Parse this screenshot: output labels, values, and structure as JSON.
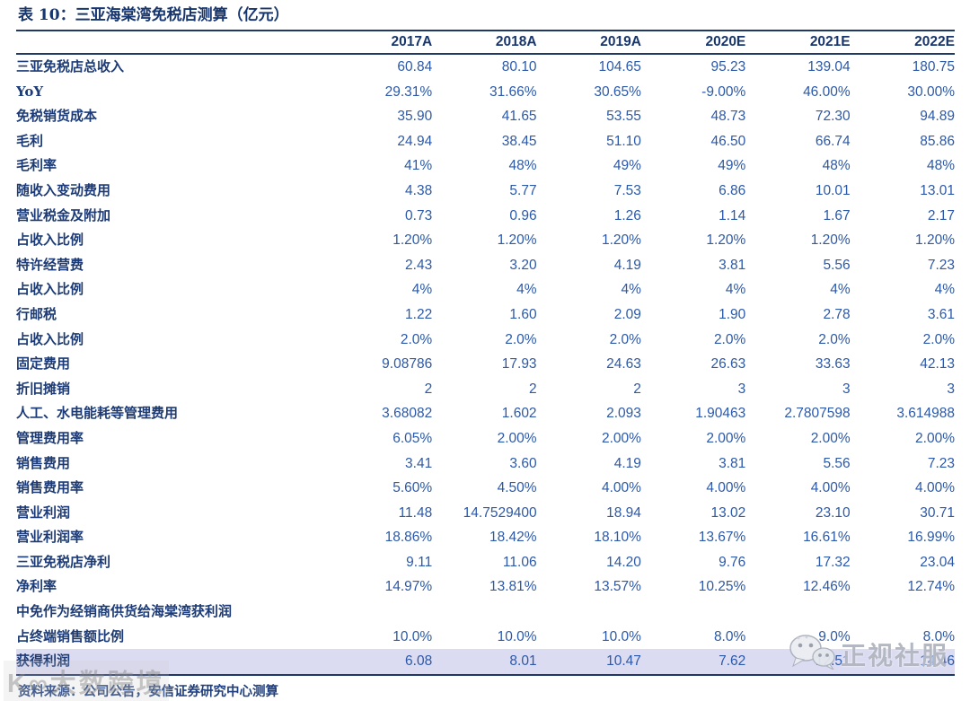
{
  "chart_data": {
    "type": "table",
    "title": "表 10：三亚海棠湾免税店测算（亿元）",
    "columns": [
      "2017A",
      "2018A",
      "2019A",
      "2020E",
      "2021E",
      "2022E"
    ],
    "rows": [
      {
        "label": "三亚免税店总收入",
        "values": [
          "60.84",
          "80.10",
          "104.65",
          "95.23",
          "139.04",
          "180.75"
        ],
        "highlight": false
      },
      {
        "label": "YoY",
        "values": [
          "29.31%",
          "31.66%",
          "30.65%",
          "-9.00%",
          "46.00%",
          "30.00%"
        ],
        "highlight": false
      },
      {
        "label": "免税销货成本",
        "values": [
          "35.90",
          "41.65",
          "53.55",
          "48.73",
          "72.30",
          "94.89"
        ],
        "highlight": false
      },
      {
        "label": "毛利",
        "values": [
          "24.94",
          "38.45",
          "51.10",
          "46.50",
          "66.74",
          "85.86"
        ],
        "highlight": false
      },
      {
        "label": "毛利率",
        "values": [
          "41%",
          "48%",
          "49%",
          "49%",
          "48%",
          "48%"
        ],
        "highlight": false
      },
      {
        "label": "随收入变动费用",
        "values": [
          "4.38",
          "5.77",
          "7.53",
          "6.86",
          "10.01",
          "13.01"
        ],
        "highlight": false
      },
      {
        "label": "营业税金及附加",
        "values": [
          "0.73",
          "0.96",
          "1.26",
          "1.14",
          "1.67",
          "2.17"
        ],
        "highlight": false
      },
      {
        "label": "占收入比例",
        "values": [
          "1.20%",
          "1.20%",
          "1.20%",
          "1.20%",
          "1.20%",
          "1.20%"
        ],
        "highlight": false
      },
      {
        "label": "特许经营费",
        "values": [
          "2.43",
          "3.20",
          "4.19",
          "3.81",
          "5.56",
          "7.23"
        ],
        "highlight": false
      },
      {
        "label": "占收入比例",
        "values": [
          "4%",
          "4%",
          "4%",
          "4%",
          "4%",
          "4%"
        ],
        "highlight": false
      },
      {
        "label": "行邮税",
        "values": [
          "1.22",
          "1.60",
          "2.09",
          "1.90",
          "2.78",
          "3.61"
        ],
        "highlight": false
      },
      {
        "label": "占收入比例",
        "values": [
          "2.0%",
          "2.0%",
          "2.0%",
          "2.0%",
          "2.0%",
          "2.0%"
        ],
        "highlight": false
      },
      {
        "label": "固定费用",
        "values": [
          "9.08786",
          "17.93",
          "24.63",
          "26.63",
          "33.63",
          "42.13"
        ],
        "highlight": false
      },
      {
        "label": "折旧摊销",
        "values": [
          "2",
          "2",
          "2",
          "3",
          "3",
          "3"
        ],
        "highlight": false
      },
      {
        "label": "人工、水电能耗等管理费用",
        "values": [
          "3.68082",
          "1.602",
          "2.093",
          "1.90463",
          "2.7807598",
          "3.614988"
        ],
        "highlight": false
      },
      {
        "label": "管理费用率",
        "values": [
          "6.05%",
          "2.00%",
          "2.00%",
          "2.00%",
          "2.00%",
          "2.00%"
        ],
        "highlight": false
      },
      {
        "label": "销售费用",
        "values": [
          "3.41",
          "3.60",
          "4.19",
          "3.81",
          "5.56",
          "7.23"
        ],
        "highlight": false
      },
      {
        "label": "销售费用率",
        "values": [
          "5.60%",
          "4.50%",
          "4.00%",
          "4.00%",
          "4.00%",
          "4.00%"
        ],
        "highlight": false
      },
      {
        "label": "营业利润",
        "values": [
          "11.48",
          "14.7529400",
          "18.94",
          "13.02",
          "23.10",
          "30.71"
        ],
        "highlight": false
      },
      {
        "label": "营业利润率",
        "values": [
          "18.86%",
          "18.42%",
          "18.10%",
          "13.67%",
          "16.61%",
          "16.99%"
        ],
        "highlight": false
      },
      {
        "label": "三亚免税店净利",
        "values": [
          "9.11",
          "11.06",
          "14.20",
          "9.76",
          "17.32",
          "23.04"
        ],
        "highlight": false
      },
      {
        "label": "净利率",
        "values": [
          "14.97%",
          "13.81%",
          "13.57%",
          "10.25%",
          "12.46%",
          "12.74%"
        ],
        "highlight": false
      },
      {
        "label": "中免作为经销商供货给海棠湾获利润",
        "values": [
          "",
          "",
          "",
          "",
          "",
          ""
        ],
        "highlight": false
      },
      {
        "label": "占终端销售额比例",
        "values": [
          "10.0%",
          "10.0%",
          "10.0%",
          "8.0%",
          "9.0%",
          "8.0%"
        ],
        "highlight": false
      },
      {
        "label": "获得利润",
        "values": [
          "6.08",
          "8.01",
          "10.47",
          "7.62",
          "12.51",
          "14.46"
        ],
        "highlight": true
      }
    ]
  },
  "source_note": "资料来源：公司公告，安信证券研究中心测算",
  "watermarks": {
    "bottom_left": "K∞大数跨境",
    "bottom_right": "正视社服"
  },
  "colors": {
    "navy_line": "#1F3864",
    "title_text": "#17366E",
    "label_text": "#1C3B76",
    "value_text": "#2C59A8",
    "highlight_bg": "#DBDBF2",
    "watermark_grey": "#B0B4C0"
  }
}
